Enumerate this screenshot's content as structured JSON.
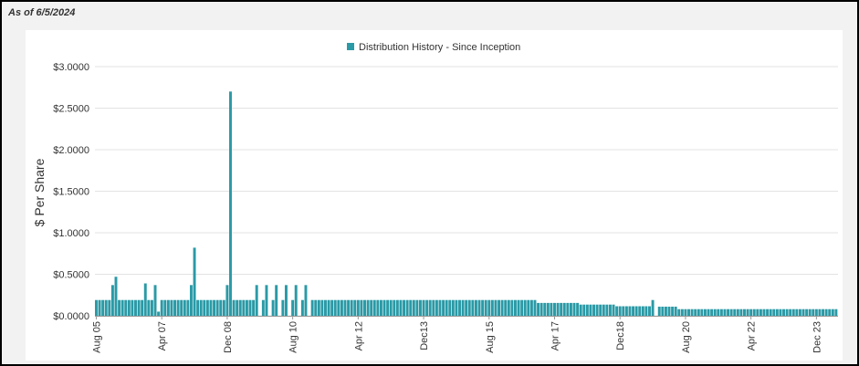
{
  "as_of": "As of 6/5/2024",
  "chart_data": {
    "type": "bar",
    "title": "",
    "legend": "Distribution History - Since Inception",
    "legend_position": "top-center",
    "color": "#2a9aa6",
    "ylabel": "$ Per Share",
    "xlabel": "",
    "ylim": [
      0,
      3
    ],
    "grid": true,
    "y_ticks": [
      "$0.0000",
      "$0.5000",
      "$1.0000",
      "$1.5000",
      "$2.0000",
      "$2.5000",
      "$3.0000"
    ],
    "x_ticks": [
      "Aug 05",
      "Apr 07",
      "Dec 08",
      "Aug 10",
      "Apr 12",
      "Dec13",
      "Aug 15",
      "Apr 17",
      "Dec18",
      "Aug 20",
      "Apr 22",
      "Dec 23"
    ],
    "x_range_months": [
      "2005-08",
      "2024-06"
    ],
    "payment_frequency": "monthly",
    "segments": [
      {
        "from": "2005-08",
        "to": "2005-12",
        "value": 0.19
      },
      {
        "from": "2006-01",
        "to": "2006-01",
        "value": 0.37
      },
      {
        "from": "2006-02",
        "to": "2006-02",
        "value": 0.47
      },
      {
        "from": "2006-03",
        "to": "2006-10",
        "value": 0.19
      },
      {
        "from": "2006-11",
        "to": "2006-11",
        "value": 0.39
      },
      {
        "from": "2006-12",
        "to": "2007-01",
        "value": 0.19
      },
      {
        "from": "2007-02",
        "to": "2007-02",
        "value": 0.37
      },
      {
        "from": "2007-03",
        "to": "2007-03",
        "value": 0.05
      },
      {
        "from": "2007-04",
        "to": "2007-12",
        "value": 0.19
      },
      {
        "from": "2008-01",
        "to": "2008-01",
        "value": 0.37
      },
      {
        "from": "2008-02",
        "to": "2008-02",
        "value": 0.82
      },
      {
        "from": "2008-03",
        "to": "2008-11",
        "value": 0.19
      },
      {
        "from": "2008-12",
        "to": "2008-12",
        "value": 0.37
      },
      {
        "from": "2009-01",
        "to": "2009-01",
        "value": 2.7
      },
      {
        "from": "2009-02",
        "to": "2009-08",
        "value": 0.19
      },
      {
        "from": "2009-09",
        "to": "2009-09",
        "value": 0.37
      },
      {
        "from": "2009-11",
        "to": "2009-11",
        "value": 0.19
      },
      {
        "from": "2009-12",
        "to": "2009-12",
        "value": 0.37
      },
      {
        "from": "2010-02",
        "to": "2010-02",
        "value": 0.19
      },
      {
        "from": "2010-03",
        "to": "2010-03",
        "value": 0.37
      },
      {
        "from": "2010-05",
        "to": "2010-05",
        "value": 0.19
      },
      {
        "from": "2010-06",
        "to": "2010-06",
        "value": 0.37
      },
      {
        "from": "2010-08",
        "to": "2010-08",
        "value": 0.19
      },
      {
        "from": "2010-09",
        "to": "2010-09",
        "value": 0.37
      },
      {
        "from": "2010-11",
        "to": "2010-11",
        "value": 0.19
      },
      {
        "from": "2010-12",
        "to": "2010-12",
        "value": 0.37
      },
      {
        "from": "2011-02",
        "to": "2016-10",
        "value": 0.19
      },
      {
        "from": "2016-11",
        "to": "2017-11",
        "value": 0.155
      },
      {
        "from": "2017-12",
        "to": "2018-10",
        "value": 0.135
      },
      {
        "from": "2018-11",
        "to": "2019-09",
        "value": 0.115
      },
      {
        "from": "2019-10",
        "to": "2019-10",
        "value": 0.19
      },
      {
        "from": "2019-12",
        "to": "2020-05",
        "value": 0.11
      },
      {
        "from": "2020-06",
        "to": "2024-06",
        "value": 0.08
      }
    ]
  }
}
